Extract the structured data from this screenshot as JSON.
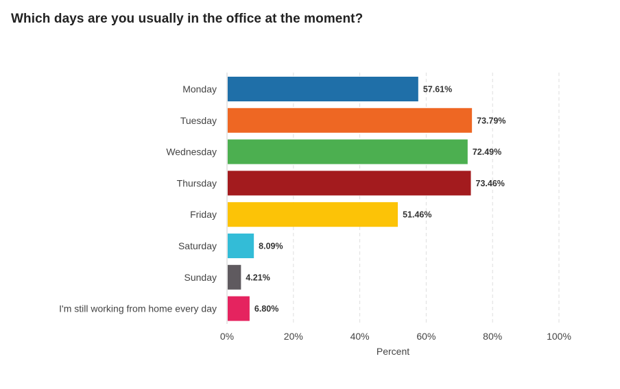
{
  "chart_data": {
    "type": "bar",
    "orientation": "horizontal",
    "title": "Which days are you usually in the office at the moment?",
    "xlabel": "Percent",
    "ylabel": "",
    "xlim": [
      0,
      100
    ],
    "x_ticks": [
      "0%",
      "20%",
      "40%",
      "60%",
      "80%",
      "100%"
    ],
    "x_tick_values": [
      0,
      20,
      40,
      60,
      80,
      100
    ],
    "grid": "vertical dashed",
    "categories": [
      "Monday",
      "Tuesday",
      "Wednesday",
      "Thursday",
      "Friday",
      "Saturday",
      "Sunday",
      "I'm still working from home every day"
    ],
    "values": [
      57.61,
      73.79,
      72.49,
      73.46,
      51.46,
      8.09,
      4.21,
      6.8
    ],
    "value_labels": [
      "57.61%",
      "73.79%",
      "72.49%",
      "73.46%",
      "51.46%",
      "8.09%",
      "4.21%",
      "6.80%"
    ],
    "colors": [
      "#1f6fa8",
      "#ee6723",
      "#4caf50",
      "#a31b1e",
      "#fcc307",
      "#33bcd7",
      "#5f5a5f",
      "#e5235f"
    ]
  }
}
